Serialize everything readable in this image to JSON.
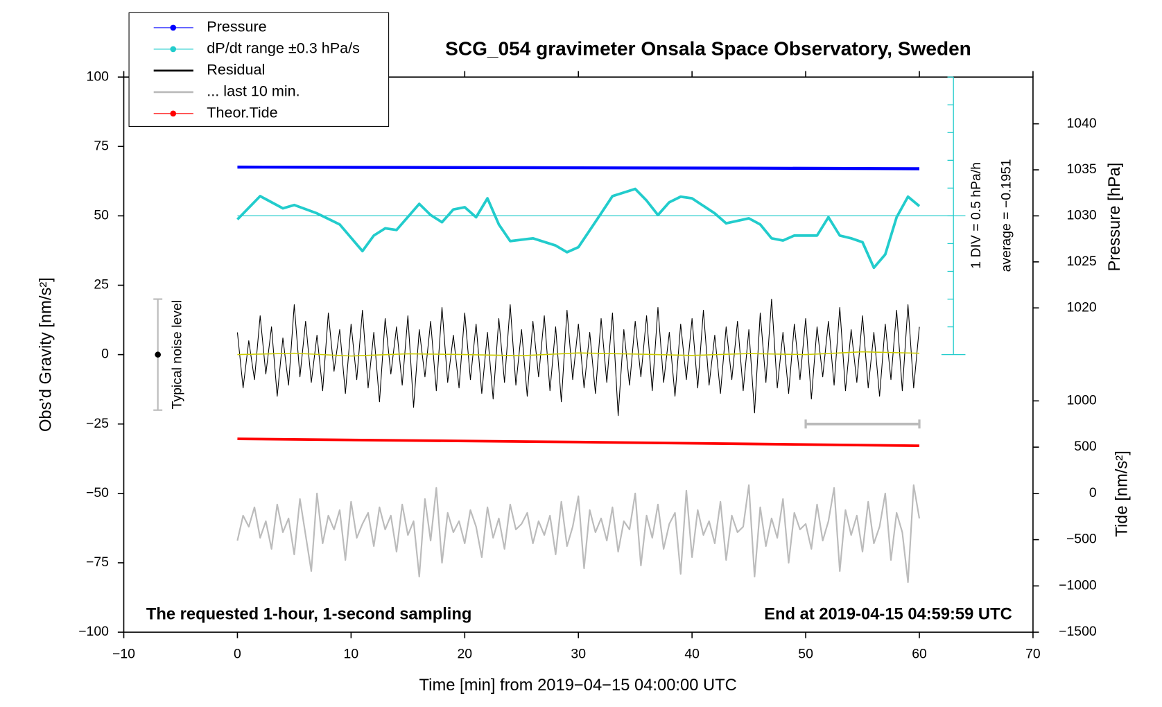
{
  "chart_data": {
    "type": "line",
    "title": "SCG_054 gravimeter Onsala Space Observatory, Sweden",
    "x_label": "Time [min] from 2019−04−15 04:00:00 UTC",
    "y_label": "Obs’d Gravity [nm/s²]",
    "y2_label": "Pressure [hPa]",
    "y3_label": "Tide [nm/s²]",
    "annotation_left": "The requested 1-hour, 1-second sampling",
    "annotation_right": "End at 2019-04-15 04:59:59 UTC",
    "div_label": "1 DIV = 0.5 hPa/h",
    "average": -0.1951,
    "average_label": "average = −0.1951",
    "noise_level": {
      "label": "Typical noise level",
      "x": -7,
      "low": -20,
      "high": 20,
      "center": 0
    },
    "last10_bar": {
      "x": [
        50,
        60
      ],
      "y": -25
    },
    "xlim": [
      -10,
      70
    ],
    "xticks": [
      {
        "value": -10,
        "label": "−10"
      },
      0,
      10,
      20,
      30,
      40,
      50,
      60,
      70
    ],
    "ylim": [
      -100,
      100
    ],
    "yticks": [
      {
        "value": -100,
        "label": "−100"
      },
      {
        "value": -75,
        "label": "−75"
      },
      {
        "value": -50,
        "label": "−50"
      },
      {
        "value": -25,
        "label": "−25"
      },
      0,
      25,
      50,
      75,
      100
    ],
    "y2lim": [
      984.77,
      1045.08
    ],
    "y2ticks": [
      1020,
      1025,
      1030,
      1035,
      1040
    ],
    "y3lim": [
      -1500,
      4500
    ],
    "y3ticks": [
      {
        "value": -1500,
        "label": "−1500"
      },
      {
        "value": -1000,
        "label": "−1000"
      },
      {
        "value": -500,
        "label": "−500"
      },
      0,
      500,
      1000
    ],
    "y4lim": [
      -7.6951,
      2.3049
    ],
    "y4ticks": [
      -2.6951,
      -2.1951,
      -1.6951,
      -1.1951,
      -0.6951,
      -0.1951,
      0.3049,
      0.8049,
      1.3049,
      1.8049,
      2.3049
    ],
    "x": [
      0,
      0.5,
      1,
      1.5,
      2,
      2.5,
      3,
      3.5,
      4,
      4.5,
      5,
      5.5,
      6,
      6.5,
      7,
      7.5,
      8,
      8.5,
      9,
      9.5,
      10,
      10.5,
      11,
      11.5,
      12,
      12.5,
      13,
      13.5,
      14,
      14.5,
      15,
      15.5,
      16,
      16.5,
      17,
      17.5,
      18,
      18.5,
      19,
      19.5,
      20,
      20.5,
      21,
      21.5,
      22,
      22.5,
      23,
      23.5,
      24,
      24.5,
      25,
      25.5,
      26,
      26.5,
      27,
      27.5,
      28,
      28.5,
      29,
      29.5,
      30,
      30.5,
      31,
      31.5,
      32,
      32.5,
      33,
      33.5,
      34,
      34.5,
      35,
      35.5,
      36,
      36.5,
      37,
      37.5,
      38,
      38.5,
      39,
      39.5,
      40,
      40.5,
      41,
      41.5,
      42,
      42.5,
      43,
      43.5,
      44,
      44.5,
      45,
      45.5,
      46,
      46.5,
      47,
      47.5,
      48,
      48.5,
      49,
      49.5,
      50,
      50.5,
      51,
      51.5,
      52,
      52.5,
      53,
      53.5,
      54,
      54.5,
      55,
      55.5,
      56,
      56.5,
      57,
      57.5,
      58,
      58.5,
      59,
      59.5,
      60
    ],
    "series": [
      {
        "name": "Pressure",
        "color": "#0000ff",
        "axis": "y2",
        "marker": true,
        "width": 4,
        "x": [
          0,
          15,
          30,
          45,
          60
        ],
        "values": [
          1035.3,
          1035.26,
          1035.22,
          1035.18,
          1035.12
        ]
      },
      {
        "name": "dP/dt range ±0.3 hPa/s",
        "color": "#22cccc",
        "axis": "y4",
        "marker": true,
        "width": 3.5,
        "x": [
          0,
          2,
          4,
          5,
          7,
          9,
          11,
          12,
          13,
          14,
          16,
          17,
          18,
          19,
          20,
          21,
          22,
          23,
          24,
          26,
          28,
          29,
          30,
          32,
          33,
          35,
          36,
          37,
          38,
          39,
          40,
          42,
          43,
          45,
          46,
          47,
          48,
          49,
          51,
          52,
          53,
          54,
          55,
          56,
          57,
          58,
          59,
          60
        ],
        "values": [
          -0.26,
          0.16,
          -0.06,
          0.0,
          -0.15,
          -0.35,
          -0.83,
          -0.55,
          -0.42,
          -0.45,
          0.02,
          -0.18,
          -0.31,
          -0.08,
          -0.04,
          -0.22,
          0.12,
          -0.35,
          -0.65,
          -0.6,
          -0.73,
          -0.85,
          -0.76,
          -0.15,
          0.16,
          0.29,
          0.08,
          -0.18,
          0.05,
          0.15,
          0.12,
          -0.15,
          -0.33,
          -0.24,
          -0.35,
          -0.6,
          -0.64,
          -0.55,
          -0.55,
          -0.22,
          -0.55,
          -0.6,
          -0.67,
          -1.13,
          -0.89,
          -0.22,
          0.15,
          -0.02
        ]
      },
      {
        "name": "Residual",
        "color": "#000000",
        "axis": "y",
        "marker": false,
        "width": 1,
        "values": [
          8,
          -12,
          5,
          -9,
          14,
          -7,
          10,
          -15,
          6,
          -11,
          18,
          -8,
          12,
          -10,
          7,
          -13,
          15,
          -6,
          9,
          -14,
          11,
          -9,
          16,
          -12,
          8,
          -17,
          13,
          -7,
          10,
          -11,
          14,
          -19,
          9,
          -8,
          12,
          -13,
          17,
          -10,
          7,
          -12,
          15,
          -9,
          11,
          -14,
          8,
          -16,
          13,
          -10,
          18,
          -11,
          9,
          -15,
          12,
          -8,
          14,
          -13,
          10,
          -17,
          16,
          -9,
          11,
          -12,
          8,
          -14,
          13,
          -10,
          15,
          -22,
          9,
          -11,
          12,
          -8,
          14,
          -13,
          17,
          -10,
          8,
          -15,
          11,
          -9,
          13,
          -12,
          16,
          -11,
          7,
          -14,
          10,
          -9,
          12,
          -13,
          9,
          -21,
          15,
          -10,
          20,
          -12,
          8,
          -14,
          11,
          -9,
          13,
          -16,
          10,
          -8,
          12,
          -11,
          17,
          -13,
          9,
          -10,
          14,
          -12,
          8,
          -15,
          11,
          -9,
          16,
          -13,
          18,
          -12,
          10
        ]
      },
      {
        "name": "... last 10 min.",
        "color": "#bbbbbb",
        "axis": "y",
        "marker": false,
        "width": 2,
        "values": [
          -67,
          -58,
          -62,
          -55,
          -66,
          -60,
          -70,
          -54,
          -64,
          -59,
          -72,
          -52,
          -65,
          -78,
          -50,
          -68,
          -58,
          -63,
          -56,
          -74,
          -53,
          -66,
          -61,
          -57,
          -69,
          -55,
          -63,
          -58,
          -71,
          -54,
          -65,
          -60,
          -80,
          -52,
          -67,
          -48,
          -75,
          -57,
          -64,
          -60,
          -68,
          -56,
          -62,
          -73,
          -55,
          -66,
          -59,
          -70,
          -54,
          -63,
          -61,
          -57,
          -68,
          -60,
          -65,
          -58,
          -72,
          -53,
          -69,
          -62,
          -51,
          -77,
          -56,
          -64,
          -59,
          -67,
          -55,
          -71,
          -60,
          -63,
          -50,
          -76,
          -58,
          -66,
          -54,
          -70,
          -61,
          -57,
          -79,
          -49,
          -73,
          -56,
          -65,
          -60,
          -68,
          -53,
          -74,
          -58,
          -64,
          -62,
          -47,
          -80,
          -55,
          -69,
          -59,
          -66,
          -52,
          -75,
          -57,
          -63,
          -61,
          -70,
          -54,
          -67,
          -60,
          -48,
          -78,
          -56,
          -65,
          -58,
          -71,
          -53,
          -68,
          -62,
          -50,
          -74,
          -57,
          -64,
          -82,
          -47,
          -59
        ]
      },
      {
        "name": "Theor.Tide",
        "color": "#ff0000",
        "axis": "y3",
        "marker": true,
        "width": 3.5,
        "x": [
          0,
          15,
          30,
          45,
          60
        ],
        "values": [
          590,
          572,
          555,
          535,
          515
        ]
      },
      {
        "color": "#cccc00",
        "axis": "y",
        "marker": false,
        "width": 1.5,
        "x": [
          0,
          5,
          10,
          15,
          20,
          25,
          30,
          35,
          40,
          45,
          50,
          55,
          60
        ],
        "values": [
          0,
          0.5,
          -0.5,
          0.3,
          0,
          -0.4,
          0.6,
          0.2,
          -0.3,
          0.4,
          0,
          1,
          0.5
        ]
      }
    ]
  }
}
